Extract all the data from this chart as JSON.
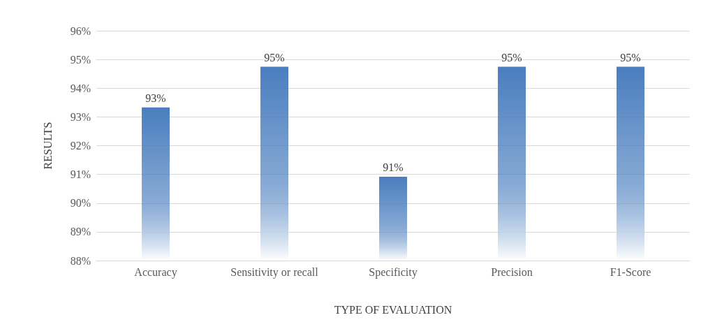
{
  "chart_data": {
    "type": "bar",
    "xlabel": "TYPE OF EVALUATION",
    "ylabel": "RESULTS",
    "categories": [
      "Accuracy",
      "Sensitivity or recall",
      "Specificity",
      "Precision",
      "F1-Score"
    ],
    "values": [
      93.33,
      94.75,
      90.92,
      94.75,
      94.75
    ],
    "value_labels": [
      "93%",
      "95%",
      "91%",
      "95%",
      "95%"
    ],
    "color": "#4a7ebf",
    "ylim": [
      88,
      96
    ],
    "yticks": [
      {
        "value": 88,
        "label": "88%"
      },
      {
        "value": 89,
        "label": "89%"
      },
      {
        "value": 90,
        "label": "90%"
      },
      {
        "value": 91,
        "label": "91%"
      },
      {
        "value": 92,
        "label": "92%"
      },
      {
        "value": 93,
        "label": "93%"
      },
      {
        "value": 94,
        "label": "94%"
      },
      {
        "value": 95,
        "label": "95%"
      },
      {
        "value": 96,
        "label": "96%"
      }
    ],
    "grid": "y"
  }
}
